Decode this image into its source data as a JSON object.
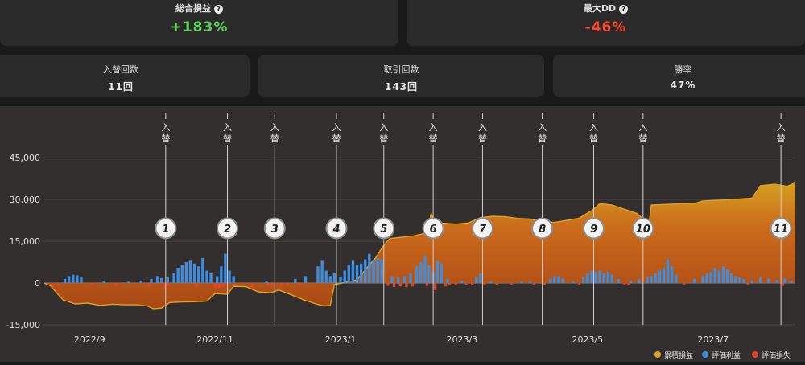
{
  "summary": {
    "total_pnl": {
      "label": "総合損益",
      "value": "+183%",
      "help": "?"
    },
    "max_dd": {
      "label": "最大DD",
      "value": "-46%",
      "help": "?"
    }
  },
  "stats": [
    {
      "label": "入替回数",
      "value": "11回"
    },
    {
      "label": "取引回数",
      "value": "143回"
    },
    {
      "label": "勝率",
      "value": "47%"
    }
  ],
  "colors": {
    "cumulative": "#e0a21c",
    "unrealized_profit": "#3d8ee0",
    "unrealized_loss": "#e0452a",
    "positive_text": "#5fd35a",
    "negative_text": "#ff4a2e"
  },
  "chart_data": {
    "type": "area",
    "x_tick_labels": [
      "2022/9",
      "2022/11",
      "2023/1",
      "2023/3",
      "2023/5",
      "2023/7"
    ],
    "x_tick_dates": [
      "2022-09-01",
      "2022-11-01",
      "2023-01-01",
      "2023-03-01",
      "2023-05-01",
      "2023-07-01"
    ],
    "x_range": [
      "2022-08-10",
      "2023-08-10"
    ],
    "ylim": [
      -15000,
      52000
    ],
    "yticks": [
      -15000,
      0,
      15000,
      30000,
      45000
    ],
    "ytick_labels": [
      "-15,000",
      "0",
      "15,000",
      "30,000",
      "45,000"
    ],
    "grid": true,
    "legend_position": "bottom-right",
    "legend": [
      "累積損益",
      "評価利益",
      "評価損失"
    ],
    "switch_events": [
      {
        "number": "1",
        "label": "入替",
        "date": "2022-10-08"
      },
      {
        "number": "2",
        "label": "入替",
        "date": "2022-11-07"
      },
      {
        "number": "3",
        "label": "入替",
        "date": "2022-11-30"
      },
      {
        "number": "4",
        "label": "入替",
        "date": "2022-12-30"
      },
      {
        "number": "5",
        "label": "入替",
        "date": "2023-01-22"
      },
      {
        "number": "6",
        "label": "入替",
        "date": "2023-02-15"
      },
      {
        "number": "7",
        "label": "入替",
        "date": "2023-03-11"
      },
      {
        "number": "8",
        "label": "入替",
        "date": "2023-04-09"
      },
      {
        "number": "9",
        "label": "入替",
        "date": "2023-05-04"
      },
      {
        "number": "10",
        "label": "入替",
        "date": "2023-05-28"
      },
      {
        "number": "11",
        "label": "入替",
        "date": "2023-08-03"
      }
    ],
    "series": [
      {
        "name": "累積損益",
        "points": [
          [
            "2022-08-10",
            0
          ],
          [
            "2022-08-13",
            -1000
          ],
          [
            "2022-08-16",
            -3500
          ],
          [
            "2022-08-19",
            -6000
          ],
          [
            "2022-08-25",
            -7500
          ],
          [
            "2022-08-31",
            -7200
          ],
          [
            "2022-09-06",
            -8000
          ],
          [
            "2022-09-12",
            -7600
          ],
          [
            "2022-09-18",
            -7800
          ],
          [
            "2022-09-24",
            -7800
          ],
          [
            "2022-09-29",
            -8200
          ],
          [
            "2022-10-02",
            -9200
          ],
          [
            "2022-10-06",
            -9000
          ],
          [
            "2022-10-10",
            -7000
          ],
          [
            "2022-10-16",
            -6800
          ],
          [
            "2022-10-22",
            -6700
          ],
          [
            "2022-10-28",
            -6500
          ],
          [
            "2022-11-01",
            -3800
          ],
          [
            "2022-11-07",
            -4000
          ],
          [
            "2022-11-10",
            -1200
          ],
          [
            "2022-11-16",
            -1300
          ],
          [
            "2022-11-22",
            -3200
          ],
          [
            "2022-11-28",
            -3500
          ],
          [
            "2022-12-02",
            -2500
          ],
          [
            "2022-12-08",
            -4200
          ],
          [
            "2022-12-14",
            -6000
          ],
          [
            "2022-12-20",
            -7500
          ],
          [
            "2022-12-24",
            -8200
          ],
          [
            "2022-12-27",
            -8000
          ],
          [
            "2022-12-29",
            -500
          ],
          [
            "2023-01-03",
            200
          ],
          [
            "2023-01-09",
            1200
          ],
          [
            "2023-01-15",
            6500
          ],
          [
            "2023-01-18",
            9000
          ],
          [
            "2023-01-21",
            12500
          ],
          [
            "2023-01-23",
            14500
          ],
          [
            "2023-01-25",
            16000
          ],
          [
            "2023-01-31",
            16500
          ],
          [
            "2023-02-06",
            17000
          ],
          [
            "2023-02-12",
            18000
          ],
          [
            "2023-02-14",
            25000
          ],
          [
            "2023-02-16",
            21000
          ],
          [
            "2023-02-20",
            21500
          ],
          [
            "2023-02-26",
            21200
          ],
          [
            "2023-03-04",
            21600
          ],
          [
            "2023-03-10",
            23500
          ],
          [
            "2023-03-16",
            24000
          ],
          [
            "2023-03-22",
            23800
          ],
          [
            "2023-03-28",
            23200
          ],
          [
            "2023-04-03",
            23000
          ],
          [
            "2023-04-09",
            22000
          ],
          [
            "2023-04-15",
            21800
          ],
          [
            "2023-04-21",
            22500
          ],
          [
            "2023-04-27",
            23300
          ],
          [
            "2023-05-03",
            26000
          ],
          [
            "2023-05-07",
            28500
          ],
          [
            "2023-05-13",
            28000
          ],
          [
            "2023-05-19",
            26500
          ],
          [
            "2023-05-25",
            25000
          ],
          [
            "2023-05-28",
            23000
          ],
          [
            "2023-05-31",
            22000
          ],
          [
            "2023-06-01",
            28000
          ],
          [
            "2023-06-15",
            28500
          ],
          [
            "2023-06-22",
            28600
          ],
          [
            "2023-06-26",
            29500
          ],
          [
            "2023-07-10",
            30000
          ],
          [
            "2023-07-20",
            30500
          ],
          [
            "2023-07-24",
            35000
          ],
          [
            "2023-07-31",
            35500
          ],
          [
            "2023-08-06",
            34800
          ],
          [
            "2023-08-10",
            36000
          ]
        ]
      },
      {
        "name": "評価利益",
        "points": [
          [
            "2022-08-20",
            1500
          ],
          [
            "2022-08-22",
            2500
          ],
          [
            "2022-08-24",
            3000
          ],
          [
            "2022-08-26",
            2800
          ],
          [
            "2022-08-28",
            2000
          ],
          [
            "2022-09-08",
            800
          ],
          [
            "2022-09-20",
            500
          ],
          [
            "2022-09-26",
            900
          ],
          [
            "2022-10-01",
            1500
          ],
          [
            "2022-10-04",
            2500
          ],
          [
            "2022-10-06",
            1800
          ],
          [
            "2022-10-09",
            2000
          ],
          [
            "2022-10-12",
            3500
          ],
          [
            "2022-10-14",
            5500
          ],
          [
            "2022-10-16",
            6500
          ],
          [
            "2022-10-18",
            7500
          ],
          [
            "2022-10-20",
            8000
          ],
          [
            "2022-10-22",
            7000
          ],
          [
            "2022-10-24",
            6000
          ],
          [
            "2022-10-26",
            9000
          ],
          [
            "2022-10-28",
            4500
          ],
          [
            "2022-10-30",
            3500
          ],
          [
            "2022-11-02",
            2500
          ],
          [
            "2022-11-04",
            6000
          ],
          [
            "2022-11-06",
            10500
          ],
          [
            "2022-11-08",
            4500
          ],
          [
            "2022-11-10",
            2500
          ],
          [
            "2022-11-26",
            800
          ],
          [
            "2022-12-10",
            1500
          ],
          [
            "2022-12-15",
            2500
          ],
          [
            "2022-12-21",
            6000
          ],
          [
            "2022-12-23",
            8000
          ],
          [
            "2022-12-25",
            4500
          ],
          [
            "2022-12-27",
            2500
          ],
          [
            "2022-12-29",
            3500
          ],
          [
            "2023-01-01",
            2200
          ],
          [
            "2023-01-03",
            4500
          ],
          [
            "2023-01-05",
            6500
          ],
          [
            "2023-01-07",
            8000
          ],
          [
            "2023-01-09",
            6500
          ],
          [
            "2023-01-11",
            7000
          ],
          [
            "2023-01-13",
            8500
          ],
          [
            "2023-01-15",
            10500
          ],
          [
            "2023-01-17",
            8000
          ],
          [
            "2023-01-19",
            9000
          ],
          [
            "2023-01-21",
            8500
          ],
          [
            "2023-01-26",
            2500
          ],
          [
            "2023-01-29",
            2000
          ],
          [
            "2023-02-01",
            2500
          ],
          [
            "2023-02-04",
            3500
          ],
          [
            "2023-02-07",
            6000
          ],
          [
            "2023-02-09",
            7500
          ],
          [
            "2023-02-11",
            9500
          ],
          [
            "2023-02-13",
            6500
          ],
          [
            "2023-02-15",
            4000
          ],
          [
            "2023-02-17",
            8000
          ],
          [
            "2023-02-19",
            7000
          ],
          [
            "2023-02-22",
            1500
          ],
          [
            "2023-03-01",
            800
          ],
          [
            "2023-03-08",
            2000
          ],
          [
            "2023-03-10",
            3500
          ],
          [
            "2023-03-15",
            500
          ],
          [
            "2023-03-30",
            600
          ],
          [
            "2023-04-03",
            500
          ],
          [
            "2023-04-13",
            1500
          ],
          [
            "2023-04-15",
            2500
          ],
          [
            "2023-04-17",
            2500
          ],
          [
            "2023-04-19",
            1500
          ],
          [
            "2023-04-24",
            500
          ],
          [
            "2023-04-29",
            2000
          ],
          [
            "2023-05-01",
            3500
          ],
          [
            "2023-05-03",
            4500
          ],
          [
            "2023-05-05",
            4000
          ],
          [
            "2023-05-07",
            4500
          ],
          [
            "2023-05-09",
            3500
          ],
          [
            "2023-05-11",
            4000
          ],
          [
            "2023-05-13",
            3000
          ],
          [
            "2023-05-16",
            1500
          ],
          [
            "2023-05-22",
            800
          ],
          [
            "2023-05-26",
            1500
          ],
          [
            "2023-05-30",
            2000
          ],
          [
            "2023-06-01",
            2500
          ],
          [
            "2023-06-03",
            3500
          ],
          [
            "2023-06-05",
            4500
          ],
          [
            "2023-06-07",
            5500
          ],
          [
            "2023-06-09",
            8500
          ],
          [
            "2023-06-11",
            6000
          ],
          [
            "2023-06-13",
            3000
          ],
          [
            "2023-06-22",
            1500
          ],
          [
            "2023-06-26",
            2500
          ],
          [
            "2023-06-28",
            3500
          ],
          [
            "2023-06-30",
            4000
          ],
          [
            "2023-07-02",
            5500
          ],
          [
            "2023-07-04",
            4500
          ],
          [
            "2023-07-06",
            6000
          ],
          [
            "2023-07-08",
            5000
          ],
          [
            "2023-07-10",
            3500
          ],
          [
            "2023-07-12",
            2500
          ],
          [
            "2023-07-14",
            2000
          ],
          [
            "2023-07-16",
            1500
          ],
          [
            "2023-07-20",
            1000
          ],
          [
            "2023-07-24",
            2000
          ],
          [
            "2023-07-28",
            1500
          ],
          [
            "2023-08-01",
            1200
          ],
          [
            "2023-08-05",
            1800
          ],
          [
            "2023-08-08",
            800
          ]
        ]
      },
      {
        "name": "評価損失",
        "points": [
          [
            "2022-08-14",
            -1500
          ],
          [
            "2022-08-17",
            -800
          ],
          [
            "2022-09-02",
            -800
          ],
          [
            "2022-09-14",
            -1000
          ],
          [
            "2022-09-30",
            -1200
          ],
          [
            "2022-10-07",
            -2000
          ],
          [
            "2022-10-09",
            -1000
          ],
          [
            "2022-10-23",
            -1500
          ],
          [
            "2022-11-01",
            -1600
          ],
          [
            "2022-11-03",
            -1700
          ],
          [
            "2022-11-05",
            -1200
          ],
          [
            "2022-11-11",
            -900
          ],
          [
            "2022-11-19",
            -1500
          ],
          [
            "2022-11-27",
            -700
          ],
          [
            "2022-11-29",
            -1000
          ],
          [
            "2022-12-03",
            -1200
          ],
          [
            "2022-12-06",
            -900
          ],
          [
            "2022-12-12",
            -800
          ],
          [
            "2023-01-24",
            -1000
          ],
          [
            "2023-01-27",
            -1500
          ],
          [
            "2023-01-30",
            -1200
          ],
          [
            "2023-02-02",
            -1500
          ],
          [
            "2023-02-05",
            -1200
          ],
          [
            "2023-02-12",
            -1000
          ],
          [
            "2023-02-16",
            -2500
          ],
          [
            "2023-02-21",
            -1200
          ],
          [
            "2023-02-23",
            -700
          ],
          [
            "2023-02-26",
            -800
          ],
          [
            "2023-03-03",
            -500
          ],
          [
            "2023-03-06",
            -800
          ],
          [
            "2023-03-12",
            -700
          ],
          [
            "2023-03-18",
            -600
          ],
          [
            "2023-03-25",
            -500
          ],
          [
            "2023-04-05",
            -500
          ],
          [
            "2023-04-10",
            -600
          ],
          [
            "2023-04-27",
            -500
          ],
          [
            "2023-05-19",
            -500
          ],
          [
            "2023-05-21",
            -800
          ],
          [
            "2023-06-17",
            -500
          ],
          [
            "2023-07-18",
            -500
          ],
          [
            "2023-08-04",
            -1000
          ]
        ]
      }
    ]
  }
}
